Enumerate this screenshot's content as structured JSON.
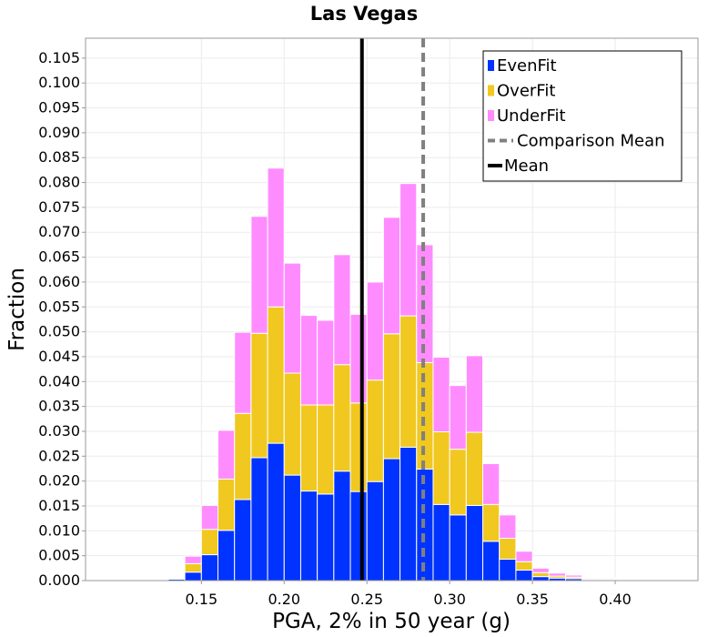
{
  "chart_data": {
    "type": "bar",
    "stacked": true,
    "title": "Las Vegas",
    "xlabel": "PGA, 2% in 50 year (g)",
    "ylabel": "Fraction",
    "xlim": [
      0.08,
      0.45
    ],
    "ylim": [
      0,
      0.109
    ],
    "grid": true,
    "legend_position": "top-right",
    "bin_width": 0.01,
    "x_ticks": [
      {
        "value": 0.15,
        "label": "0.15"
      },
      {
        "value": 0.2,
        "label": "0.20"
      },
      {
        "value": 0.25,
        "label": "0.25"
      },
      {
        "value": 0.3,
        "label": "0.30"
      },
      {
        "value": 0.35,
        "label": "0.35"
      },
      {
        "value": 0.4,
        "label": "0.40"
      }
    ],
    "y_ticks": [
      {
        "value": 0.0,
        "label": "0.000"
      },
      {
        "value": 0.005,
        "label": "0.005"
      },
      {
        "value": 0.01,
        "label": "0.010"
      },
      {
        "value": 0.015,
        "label": "0.015"
      },
      {
        "value": 0.02,
        "label": "0.020"
      },
      {
        "value": 0.025,
        "label": "0.025"
      },
      {
        "value": 0.03,
        "label": "0.030"
      },
      {
        "value": 0.035,
        "label": "0.035"
      },
      {
        "value": 0.04,
        "label": "0.040"
      },
      {
        "value": 0.045,
        "label": "0.045"
      },
      {
        "value": 0.05,
        "label": "0.050"
      },
      {
        "value": 0.055,
        "label": "0.055"
      },
      {
        "value": 0.06,
        "label": "0.060"
      },
      {
        "value": 0.065,
        "label": "0.065"
      },
      {
        "value": 0.07,
        "label": "0.070"
      },
      {
        "value": 0.075,
        "label": "0.075"
      },
      {
        "value": 0.08,
        "label": "0.080"
      },
      {
        "value": 0.085,
        "label": "0.085"
      },
      {
        "value": 0.09,
        "label": "0.090"
      },
      {
        "value": 0.095,
        "label": "0.095"
      },
      {
        "value": 0.1,
        "label": "0.100"
      },
      {
        "value": 0.105,
        "label": "0.105"
      }
    ],
    "x": [
      0.135,
      0.145,
      0.155,
      0.165,
      0.175,
      0.185,
      0.195,
      0.205,
      0.215,
      0.225,
      0.235,
      0.245,
      0.255,
      0.265,
      0.275,
      0.285,
      0.295,
      0.305,
      0.315,
      0.325,
      0.335,
      0.345,
      0.355,
      0.365,
      0.375,
      0.385,
      0.395,
      0.405,
      0.415,
      0.425
    ],
    "series": [
      {
        "name": "EvenFit",
        "color": "#0033ff",
        "values": [
          0.0003,
          0.0017,
          0.0052,
          0.0101,
          0.0163,
          0.0247,
          0.0276,
          0.0212,
          0.018,
          0.0174,
          0.022,
          0.0179,
          0.0199,
          0.0245,
          0.0268,
          0.0224,
          0.0153,
          0.0132,
          0.0151,
          0.0079,
          0.0043,
          0.0021,
          0.0008,
          0.0005,
          0.0004,
          0.0002,
          0.0002,
          0.0001,
          0.0001,
          0.0
        ]
      },
      {
        "name": "OverFit",
        "color": "#f0c820",
        "values": [
          0.0002,
          0.0017,
          0.0051,
          0.0103,
          0.0173,
          0.025,
          0.0274,
          0.0205,
          0.0173,
          0.0179,
          0.0214,
          0.0178,
          0.0204,
          0.0251,
          0.0264,
          0.0214,
          0.0146,
          0.0132,
          0.0147,
          0.0074,
          0.0042,
          0.0017,
          0.0008,
          0.0004,
          0.0003,
          0.0002,
          0.0001,
          0.0001,
          0.0,
          0.0
        ]
      },
      {
        "name": "UnderFit",
        "color": "#ff8cff",
        "values": [
          0.0001,
          0.0015,
          0.0048,
          0.0098,
          0.0163,
          0.0235,
          0.0279,
          0.0221,
          0.018,
          0.017,
          0.0221,
          0.0178,
          0.0197,
          0.0234,
          0.0266,
          0.0237,
          0.015,
          0.0128,
          0.0154,
          0.0082,
          0.0047,
          0.0021,
          0.0009,
          0.0006,
          0.0004,
          0.0002,
          0.0002,
          0.0001,
          0.0001,
          0.0001
        ]
      }
    ],
    "lines": [
      {
        "name": "Comparison Mean",
        "x": 0.284,
        "color": "#808080",
        "style": "dashed"
      },
      {
        "name": "Mean",
        "x": 0.247,
        "color": "#000000",
        "style": "solid"
      }
    ],
    "legend": [
      {
        "label": "EvenFit",
        "kind": "box",
        "color": "#0033ff"
      },
      {
        "label": "OverFit",
        "kind": "box",
        "color": "#f0c820"
      },
      {
        "label": "UnderFit",
        "kind": "box",
        "color": "#ff8cff"
      },
      {
        "label": "Comparison Mean",
        "kind": "dashed",
        "color": "#808080"
      },
      {
        "label": "Mean",
        "kind": "solid",
        "color": "#000000"
      }
    ]
  }
}
